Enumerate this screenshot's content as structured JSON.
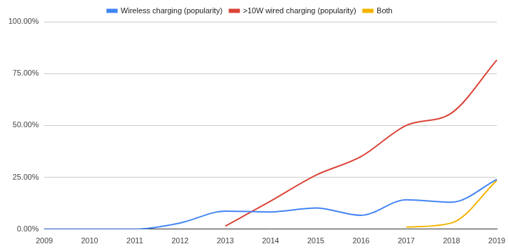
{
  "chart_data": {
    "type": "line",
    "categories": [
      "2009",
      "2010",
      "2011",
      "2012",
      "2013",
      "2014",
      "2015",
      "2016",
      "2017",
      "2018",
      "2019"
    ],
    "series": [
      {
        "name": "Wireless charging (popularity)",
        "color": "#4285f4",
        "values": [
          0,
          0,
          0,
          3,
          8.7,
          8.3,
          10.2,
          6.7,
          14.2,
          13,
          24
        ]
      },
      {
        "name": ">10W wired charging (popularity)",
        "color": "#db4437",
        "values": [
          null,
          null,
          null,
          null,
          1.5,
          13.5,
          26,
          35,
          50,
          56,
          81.5
        ]
      },
      {
        "name": "Both",
        "color": "#f4b400",
        "values": [
          null,
          null,
          null,
          null,
          null,
          null,
          null,
          null,
          1,
          3,
          23.5
        ]
      }
    ],
    "ylim": [
      0,
      100
    ],
    "yticks": [
      {
        "value": 0,
        "label": "0.00%"
      },
      {
        "value": 25,
        "label": "25.00%"
      },
      {
        "value": 50,
        "label": "50.00%"
      },
      {
        "value": 75,
        "label": "75.00%"
      },
      {
        "value": 100,
        "label": "100.00%"
      }
    ],
    "grid": true,
    "legend": "top"
  }
}
